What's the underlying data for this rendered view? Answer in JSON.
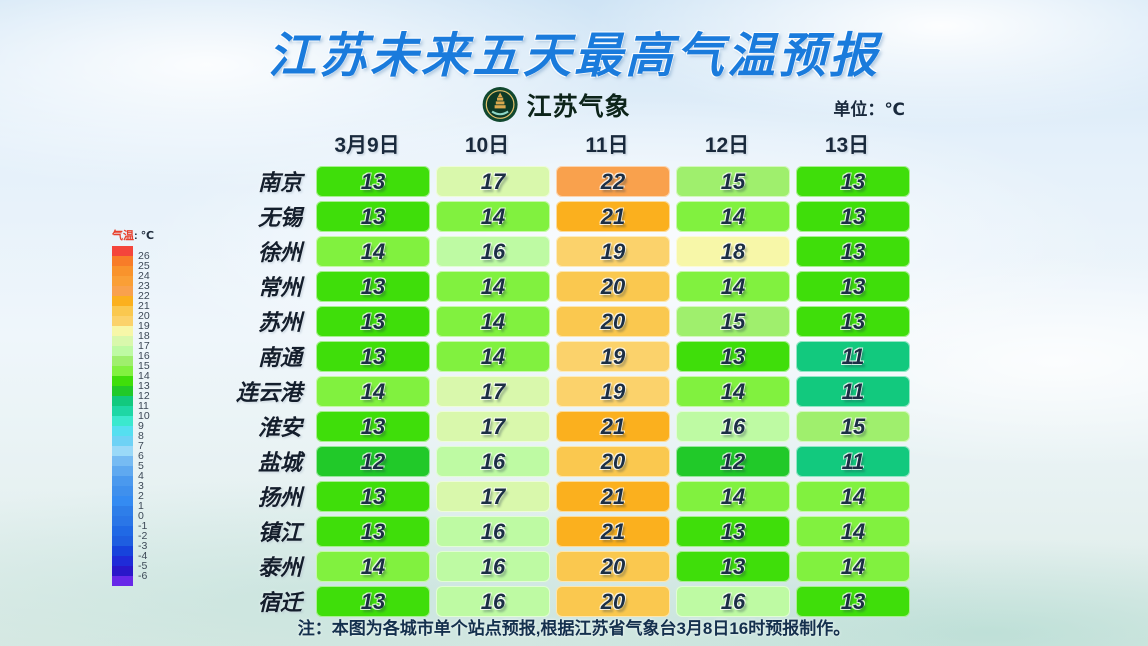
{
  "page": {
    "title": "江苏未来五天最高气温预报",
    "unit_label": "单位：℃",
    "footnote": "注：本图为各城市单个站点预报,根据江苏省气象台3月8日16时预报制作。"
  },
  "logo": {
    "text": "江苏气象"
  },
  "legend": {
    "title_temp": "气温",
    "title_unit": ": ℃",
    "entries": [
      {
        "color": "#F4453B",
        "label": "26"
      },
      {
        "color": "#F87C28",
        "label": "25"
      },
      {
        "color": "#F9932C",
        "label": "24"
      },
      {
        "color": "#FA9F36",
        "label": "23"
      },
      {
        "color": "#F9A14D",
        "label": "22"
      },
      {
        "color": "#FBB01E",
        "label": "21"
      },
      {
        "color": "#FAC84F",
        "label": "20"
      },
      {
        "color": "#FBD26B",
        "label": "19"
      },
      {
        "color": "#F7F7A8",
        "label": "18"
      },
      {
        "color": "#D9F8AC",
        "label": "17"
      },
      {
        "color": "#BEFAA3",
        "label": "16"
      },
      {
        "color": "#9FEF6D",
        "label": "15"
      },
      {
        "color": "#81F13F",
        "label": "14"
      },
      {
        "color": "#3FDE0A",
        "label": "13"
      },
      {
        "color": "#21C929",
        "label": "12"
      },
      {
        "color": "#12C97E",
        "label": "11"
      },
      {
        "color": "#1ED7A5",
        "label": "10"
      },
      {
        "color": "#3BE8CE",
        "label": "9"
      },
      {
        "color": "#55DFF0",
        "label": "8"
      },
      {
        "color": "#6ED2F5",
        "label": "7"
      },
      {
        "color": "#9AD9F8",
        "label": "6"
      },
      {
        "color": "#76BBF3",
        "label": "5"
      },
      {
        "color": "#5FA9F0",
        "label": "4"
      },
      {
        "color": "#4A99EE",
        "label": "3"
      },
      {
        "color": "#3F90ED",
        "label": "2"
      },
      {
        "color": "#348BF2",
        "label": "1"
      },
      {
        "color": "#2E7EE9",
        "label": "0"
      },
      {
        "color": "#2A76E7",
        "label": "-1"
      },
      {
        "color": "#2069E5",
        "label": "-2"
      },
      {
        "color": "#1E5EE0",
        "label": "-3"
      },
      {
        "color": "#1743DC",
        "label": "-4"
      },
      {
        "color": "#1F2BD8",
        "label": "-5"
      },
      {
        "color": "#2A17C9",
        "label": "-6"
      },
      {
        "color": "#6728E8",
        "label": ""
      }
    ]
  },
  "colors": {
    "title_blue": "#1A7BDC",
    "temp_fill": {
      "11": "#12C97E",
      "12": "#21C929",
      "13": "#3FDE0A",
      "14": "#81F13F",
      "15": "#9FEF6D",
      "16": "#BEFAA3",
      "17": "#D9F8AC",
      "18": "#F7F7A8",
      "19": "#FBD26B",
      "20": "#FAC84F",
      "21": "#FBB01E",
      "22": "#F9A14D"
    }
  },
  "chart_data": {
    "type": "heatmap",
    "title": "江苏未来五天最高气温预报",
    "unit": "℃",
    "legend_position": "left",
    "colorbar_label": "气温: ℃",
    "colorbar_ticks": [
      26,
      25,
      24,
      23,
      22,
      21,
      20,
      19,
      18,
      17,
      16,
      15,
      14,
      13,
      12,
      11,
      10,
      9,
      8,
      7,
      6,
      5,
      4,
      3,
      2,
      1,
      0,
      -1,
      -2,
      -3,
      -4,
      -5,
      -6
    ],
    "x_labels": [
      "3月9日",
      "10日",
      "11日",
      "12日",
      "13日"
    ],
    "y_labels": [
      "南京",
      "无锡",
      "徐州",
      "常州",
      "苏州",
      "南通",
      "连云港",
      "淮安",
      "盐城",
      "扬州",
      "镇江",
      "泰州",
      "宿迁"
    ],
    "values": [
      [
        13,
        17,
        22,
        15,
        13
      ],
      [
        13,
        14,
        21,
        14,
        13
      ],
      [
        14,
        16,
        19,
        18,
        13
      ],
      [
        13,
        14,
        20,
        14,
        13
      ],
      [
        13,
        14,
        20,
        15,
        13
      ],
      [
        13,
        14,
        19,
        13,
        11
      ],
      [
        14,
        17,
        19,
        14,
        11
      ],
      [
        13,
        17,
        21,
        16,
        15
      ],
      [
        12,
        16,
        20,
        12,
        11
      ],
      [
        13,
        17,
        21,
        14,
        14
      ],
      [
        13,
        16,
        21,
        13,
        14
      ],
      [
        14,
        16,
        20,
        13,
        14
      ],
      [
        13,
        16,
        20,
        16,
        13
      ]
    ],
    "source_note": "注：本图为各城市单个站点预报,根据江苏省气象台3月8日16时预报制作。"
  }
}
